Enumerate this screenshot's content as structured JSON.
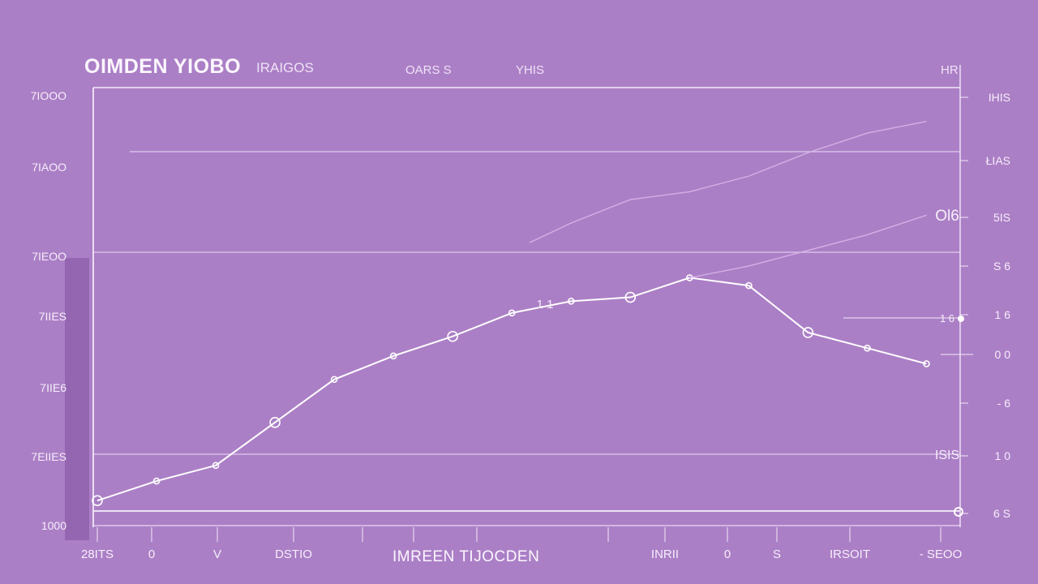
{
  "header": {
    "title": "OIMDEN YIOBO",
    "subtitle": "IRAIGOS",
    "label_1": "OARS S",
    "label_2": "YHIS",
    "label_3": "HR"
  },
  "chart_data": {
    "type": "line",
    "title": "OIMDEN YIOBO",
    "xlabel": "IMREEN TIJOCDEN",
    "ylabel": "",
    "grid": true,
    "y_ticks_left": [
      "7IOOO",
      "7IAOO",
      "7IEOO",
      "7IIES",
      "7IIE6",
      "7EIIES",
      "1000"
    ],
    "y_ticks_right": [
      "IHIS",
      "ŁIAS",
      "5IS",
      "S 6",
      "1 6",
      "0 0",
      "- 6",
      "1 0",
      "6 S"
    ],
    "x_ticks": [
      "28ITS",
      "0",
      "V",
      "DSTIO",
      "",
      "",
      "",
      "",
      "INRII",
      "0",
      "S",
      "IRSOIT",
      "- SEOO"
    ],
    "annotations": [
      "Ol6",
      "1 1",
      "1 6",
      "ISIS"
    ],
    "xlim": [
      0,
      14.5
    ],
    "ylim": [
      0,
      100
    ],
    "series": [
      {
        "color": "#ffffff",
        "x": [
          0,
          1,
          2,
          3,
          4,
          5,
          6,
          7,
          8,
          9,
          10,
          11,
          12,
          13,
          14
        ],
        "y": [
          1,
          6,
          10,
          21,
          32,
          38,
          43,
          49,
          52,
          53,
          58,
          56,
          44,
          40,
          36
        ]
      },
      {
        "color": "#d7b6e8",
        "x": [
          7.3,
          8,
          9,
          10,
          11,
          12,
          13,
          14
        ],
        "y": [
          67,
          72,
          78,
          80,
          84,
          90,
          95,
          98
        ]
      },
      {
        "color": "#d7b6e8",
        "x": [
          10,
          11,
          12,
          13,
          14
        ],
        "y": [
          58,
          61,
          65,
          69,
          74
        ]
      }
    ]
  }
}
